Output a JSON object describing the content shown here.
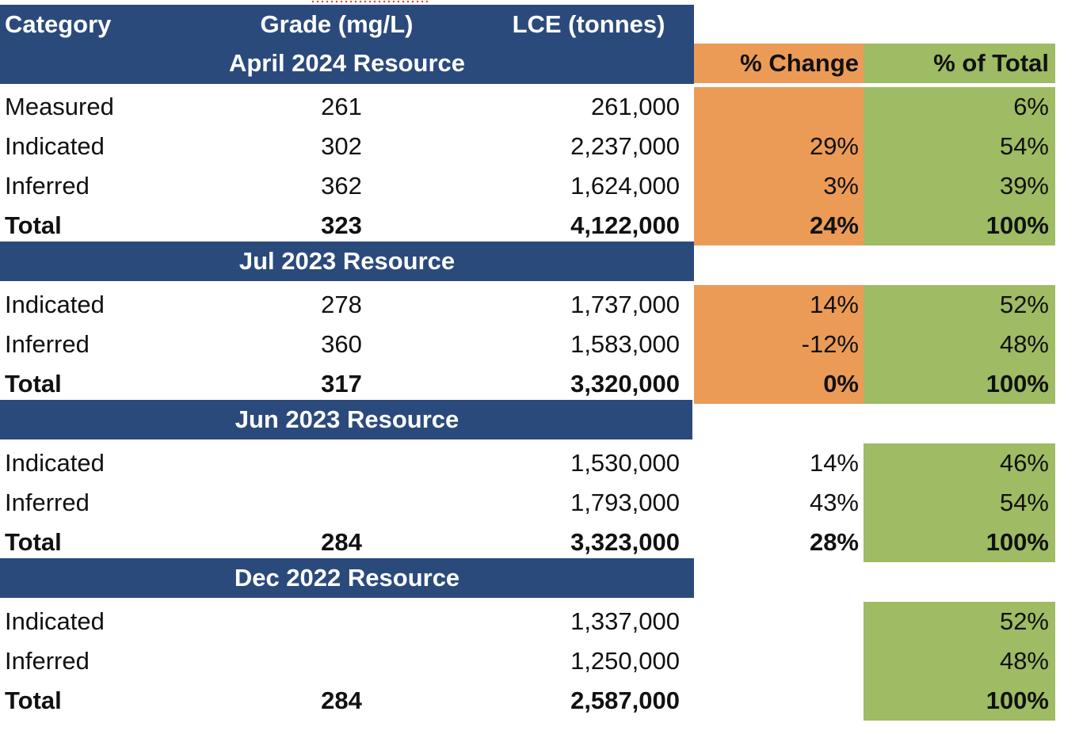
{
  "header": {
    "col_category": "Category",
    "col_grade": "Grade (mg/L)",
    "col_lce": "LCE (tonnes)",
    "col_change": "% Change",
    "col_total": "% of Total"
  },
  "sections": [
    {
      "title": "April 2024 Resource",
      "rows": [
        {
          "category": "Measured",
          "grade": "261",
          "lce": "261,000",
          "change": "",
          "total": "6%"
        },
        {
          "category": "Indicated",
          "grade": "302",
          "lce": "2,237,000",
          "change": "29%",
          "total": "54%"
        },
        {
          "category": "Inferred",
          "grade": "362",
          "lce": "1,624,000",
          "change": "3%",
          "total": "39%"
        },
        {
          "category": "Total",
          "grade": "323",
          "lce": "4,122,000",
          "change": "24%",
          "total": "100%"
        }
      ]
    },
    {
      "title": "Jul 2023 Resource",
      "rows": [
        {
          "category": "Indicated",
          "grade": "278",
          "lce": "1,737,000",
          "change": "14%",
          "total": "52%"
        },
        {
          "category": "Inferred",
          "grade": "360",
          "lce": "1,583,000",
          "change": "-12%",
          "total": "48%"
        },
        {
          "category": "Total",
          "grade": "317",
          "lce": "3,320,000",
          "change": "0%",
          "total": "100%"
        }
      ]
    },
    {
      "title": "Jun 2023 Resource",
      "rows": [
        {
          "category": "Indicated",
          "grade": "",
          "lce": "1,530,000",
          "change": "14%",
          "total": "46%"
        },
        {
          "category": "Inferred",
          "grade": "",
          "lce": "1,793,000",
          "change": "43%",
          "total": "54%"
        },
        {
          "category": "Total",
          "grade": "284",
          "lce": "3,323,000",
          "change": "28%",
          "total": "100%"
        }
      ]
    },
    {
      "title": "Dec 2022 Resource",
      "rows": [
        {
          "category": "Indicated",
          "grade": "",
          "lce": "1,337,000",
          "change": "",
          "total": "52%"
        },
        {
          "category": "Inferred",
          "grade": "",
          "lce": "1,250,000",
          "change": "",
          "total": "48%"
        },
        {
          "category": "Total",
          "grade": "284",
          "lce": "2,587,000",
          "change": "",
          "total": "100%"
        }
      ]
    }
  ],
  "colors": {
    "header_navy": "#2b4a7c",
    "change_orange": "#ec9b57",
    "total_green": "#9fbb63"
  }
}
